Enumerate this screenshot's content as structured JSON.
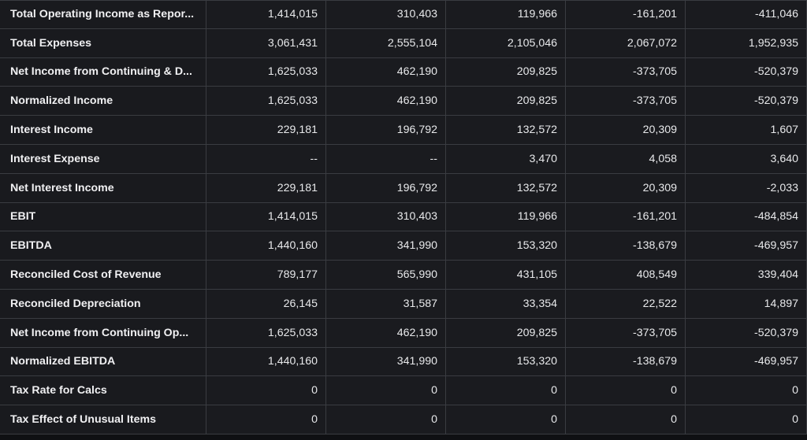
{
  "rows": [
    {
      "label": "Total Operating Income as Repor...",
      "values": [
        "1,414,015",
        "310,403",
        "119,966",
        "-161,201",
        "-411,046"
      ]
    },
    {
      "label": "Total Expenses",
      "values": [
        "3,061,431",
        "2,555,104",
        "2,105,046",
        "2,067,072",
        "1,952,935"
      ]
    },
    {
      "label": "Net Income from Continuing & D...",
      "values": [
        "1,625,033",
        "462,190",
        "209,825",
        "-373,705",
        "-520,379"
      ]
    },
    {
      "label": "Normalized Income",
      "values": [
        "1,625,033",
        "462,190",
        "209,825",
        "-373,705",
        "-520,379"
      ]
    },
    {
      "label": "Interest Income",
      "values": [
        "229,181",
        "196,792",
        "132,572",
        "20,309",
        "1,607"
      ]
    },
    {
      "label": "Interest Expense",
      "values": [
        "--",
        "--",
        "3,470",
        "4,058",
        "3,640"
      ]
    },
    {
      "label": "Net Interest Income",
      "values": [
        "229,181",
        "196,792",
        "132,572",
        "20,309",
        "-2,033"
      ]
    },
    {
      "label": "EBIT",
      "values": [
        "1,414,015",
        "310,403",
        "119,966",
        "-161,201",
        "-484,854"
      ]
    },
    {
      "label": "EBITDA",
      "values": [
        "1,440,160",
        "341,990",
        "153,320",
        "-138,679",
        "-469,957"
      ]
    },
    {
      "label": "Reconciled Cost of Revenue",
      "values": [
        "789,177",
        "565,990",
        "431,105",
        "408,549",
        "339,404"
      ]
    },
    {
      "label": "Reconciled Depreciation",
      "values": [
        "26,145",
        "31,587",
        "33,354",
        "22,522",
        "14,897"
      ]
    },
    {
      "label": "Net Income from Continuing Op...",
      "values": [
        "1,625,033",
        "462,190",
        "209,825",
        "-373,705",
        "-520,379"
      ]
    },
    {
      "label": "Normalized EBITDA",
      "values": [
        "1,440,160",
        "341,990",
        "153,320",
        "-138,679",
        "-469,957"
      ]
    },
    {
      "label": "Tax Rate for Calcs",
      "values": [
        "0",
        "0",
        "0",
        "0",
        "0"
      ]
    },
    {
      "label": "Tax Effect of Unusual Items",
      "values": [
        "0",
        "0",
        "0",
        "0",
        "0"
      ]
    }
  ]
}
